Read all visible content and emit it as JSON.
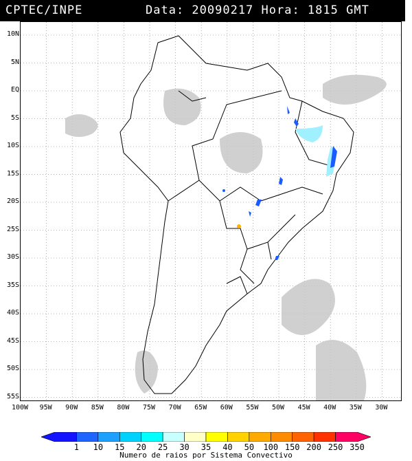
{
  "header": {
    "title": "CPTEC/INPE",
    "stamp": "Data: 20090217 Hora: 1815 GMT"
  },
  "map": {
    "lat_labels": [
      "10N",
      "5N",
      "EQ",
      "5S",
      "10S",
      "15S",
      "20S",
      "25S",
      "30S",
      "35S",
      "40S",
      "45S",
      "50S",
      "55S"
    ],
    "lon_labels": [
      "100W",
      "95W",
      "90W",
      "85W",
      "80W",
      "75W",
      "70W",
      "65W",
      "60W",
      "55W",
      "50W",
      "45W",
      "40W",
      "35W",
      "30W"
    ],
    "colors": {
      "cloud": "#c8c8c8",
      "land_outline": "#000000",
      "grid": "#9a9a9a",
      "lightning_blue": "#1a5cff",
      "lightning_cyan": "#a0f0ff",
      "lightning_orange": "#ffb000"
    }
  },
  "legend": {
    "labels": [
      "1",
      "10",
      "15",
      "20",
      "25",
      "30",
      "35",
      "40",
      "50",
      "100",
      "150",
      "200",
      "250",
      "350"
    ],
    "colors": [
      "#1414ff",
      "#1e64ff",
      "#1ea0ff",
      "#00d2ff",
      "#00ffff",
      "#c8ffff",
      "#ffffc8",
      "#ffff00",
      "#ffd200",
      "#ffaa00",
      "#ff8c00",
      "#ff6400",
      "#ff3200",
      "#ff0064"
    ],
    "caption": "Numero de raios por Sistema Convectivo"
  }
}
